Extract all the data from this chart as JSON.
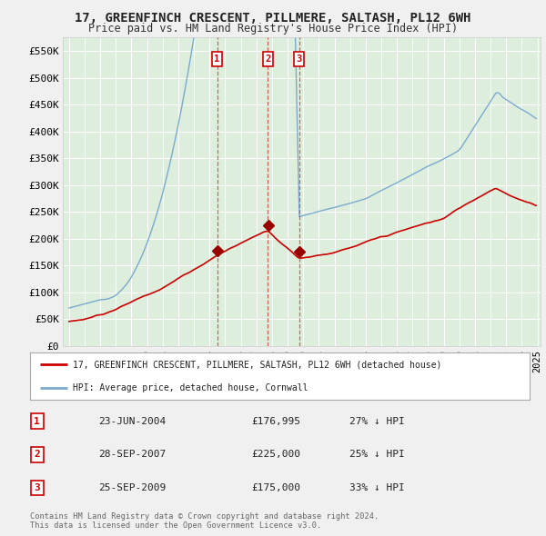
{
  "title": "17, GREENFINCH CRESCENT, PILLMERE, SALTASH, PL12 6WH",
  "subtitle": "Price paid vs. HM Land Registry's House Price Index (HPI)",
  "background_color": "#f0f0f0",
  "plot_bg_color": "#ddeedd",
  "grid_color": "#ffffff",
  "red_line_color": "#cc0000",
  "blue_line_color": "#7aaad0",
  "transactions": [
    {
      "num": 1,
      "date_str": "23-JUN-2004",
      "date_x": 2004.48,
      "price": 176995,
      "price_str": "£176,995",
      "label": "27% ↓ HPI"
    },
    {
      "num": 2,
      "date_str": "28-SEP-2007",
      "date_x": 2007.74,
      "price": 225000,
      "price_str": "£225,000",
      "label": "25% ↓ HPI"
    },
    {
      "num": 3,
      "date_str": "25-SEP-2009",
      "date_x": 2009.73,
      "price": 175000,
      "price_str": "£175,000",
      "label": "33% ↓ HPI"
    }
  ],
  "legend_entries": [
    "17, GREENFINCH CRESCENT, PILLMERE, SALTASH, PL12 6WH (detached house)",
    "HPI: Average price, detached house, Cornwall"
  ],
  "footer": "Contains HM Land Registry data © Crown copyright and database right 2024.\nThis data is licensed under the Open Government Licence v3.0.",
  "ylim": [
    0,
    575000
  ],
  "yticks": [
    0,
    50000,
    100000,
    150000,
    200000,
    250000,
    300000,
    350000,
    400000,
    450000,
    500000,
    550000
  ],
  "ytick_labels": [
    "£0",
    "£50K",
    "£100K",
    "£150K",
    "£200K",
    "£250K",
    "£300K",
    "£350K",
    "£400K",
    "£450K",
    "£500K",
    "£550K"
  ],
  "xlim": [
    1994.6,
    2025.2
  ],
  "xtick_start": 1995,
  "xtick_end": 2025
}
